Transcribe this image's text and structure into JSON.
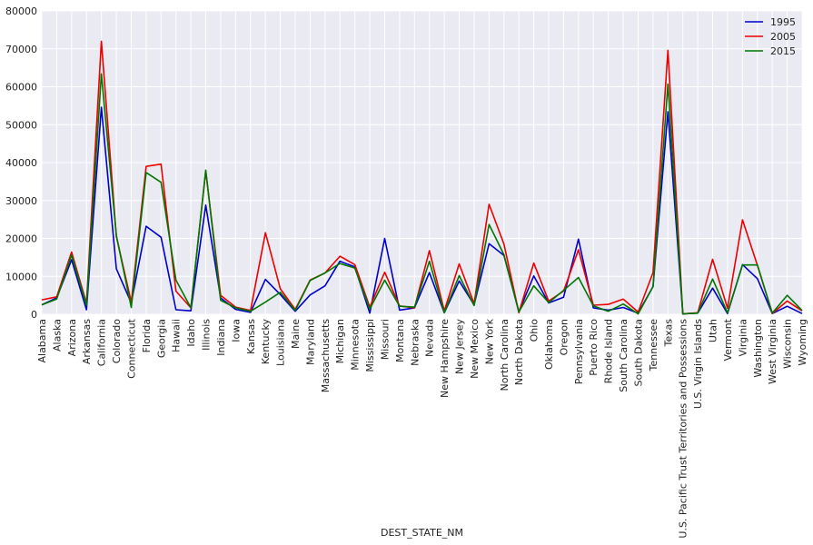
{
  "chart_data": {
    "type": "line",
    "xlabel": "DEST_STATE_NM",
    "ylabel": "",
    "ylim": [
      0,
      80000
    ],
    "yticks": [
      0,
      10000,
      20000,
      30000,
      40000,
      50000,
      60000,
      70000,
      80000
    ],
    "grid": true,
    "legend_position": "top-right",
    "categories": [
      "Alabama",
      "Alaska",
      "Arizona",
      "Arkansas",
      "California",
      "Colorado",
      "Connecticut",
      "Florida",
      "Georgia",
      "Hawaii",
      "Idaho",
      "Illinois",
      "Indiana",
      "Iowa",
      "Kansas",
      "Kentucky",
      "Louisiana",
      "Maine",
      "Maryland",
      "Massachusetts",
      "Michigan",
      "Minnesota",
      "Mississippi",
      "Missouri",
      "Montana",
      "Nebraska",
      "Nevada",
      "New Hampshire",
      "New Jersey",
      "New Mexico",
      "New York",
      "North Carolina",
      "North Dakota",
      "Ohio",
      "Oklahoma",
      "Oregon",
      "Pennsylvania",
      "Puerto Rico",
      "Rhode Island",
      "South Carolina",
      "South Dakota",
      "Tennessee",
      "Texas",
      "U.S. Pacific Trust Territories and Possessions",
      "U.S. Virgin Islands",
      "Utah",
      "Vermont",
      "Virginia",
      "Washington",
      "West Virginia",
      "Wisconsin",
      "Wyoming"
    ],
    "series": [
      {
        "name": "1995",
        "color": "#0000cc",
        "values": [
          2500,
          4300,
          14400,
          1200,
          54600,
          12000,
          3000,
          23200,
          20300,
          1200,
          900,
          28800,
          4300,
          1300,
          500,
          9200,
          5200,
          800,
          5100,
          7500,
          14000,
          12500,
          300,
          20000,
          1100,
          1700,
          11000,
          400,
          8800,
          2500,
          18600,
          15500,
          700,
          10100,
          3000,
          4500,
          19800,
          1700,
          1100,
          1800,
          300,
          7300,
          53400,
          100,
          300,
          6900,
          200,
          13100,
          9400,
          200,
          2100,
          200
        ]
      },
      {
        "name": "2005",
        "color": "#ee0000",
        "values": [
          3800,
          4600,
          16400,
          2900,
          72000,
          20500,
          3200,
          39000,
          39600,
          6100,
          1700,
          37800,
          5000,
          1900,
          1000,
          21500,
          6700,
          1300,
          9000,
          10900,
          15300,
          13100,
          1900,
          11100,
          2200,
          1700,
          16800,
          900,
          13300,
          2800,
          29000,
          18500,
          400,
          13500,
          3500,
          6100,
          17000,
          2400,
          2600,
          4000,
          600,
          11000,
          69600,
          100,
          400,
          14500,
          1600,
          24900,
          12900,
          200,
          3500,
          900
        ]
      },
      {
        "name": "2015",
        "color": "#007700",
        "values": [
          2500,
          4000,
          15600,
          2400,
          63400,
          20800,
          1800,
          37400,
          34800,
          9000,
          1700,
          38000,
          3700,
          1700,
          800,
          3200,
          5800,
          1000,
          8900,
          10900,
          13400,
          12200,
          1400,
          9000,
          2100,
          1900,
          14000,
          400,
          10200,
          2300,
          23700,
          15700,
          600,
          7500,
          3100,
          6300,
          9700,
          2200,
          800,
          2700,
          100,
          7300,
          60700,
          100,
          300,
          9300,
          400,
          13000,
          13000,
          300,
          5000,
          1000
        ]
      }
    ]
  }
}
